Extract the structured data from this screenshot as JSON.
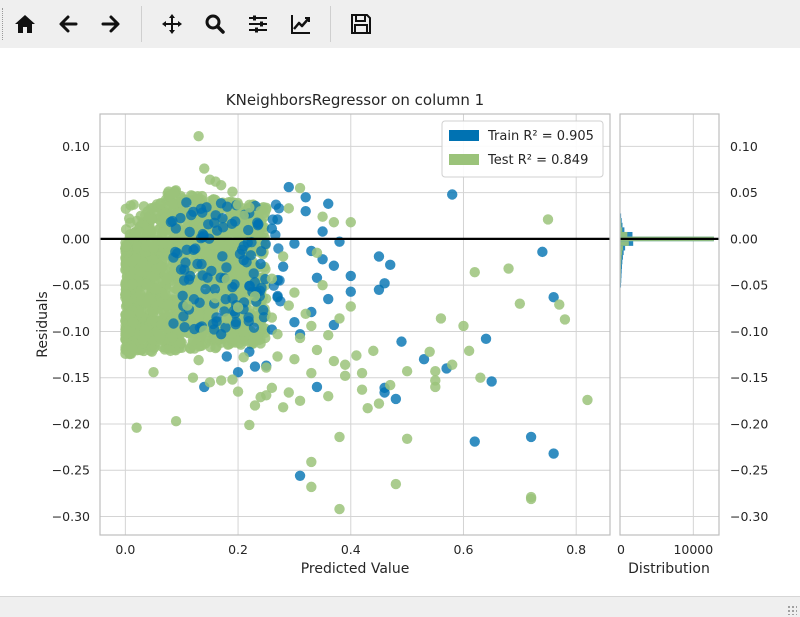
{
  "toolbar": {
    "buttons": [
      {
        "icon": "home-icon"
      },
      {
        "icon": "back-arrow-icon"
      },
      {
        "icon": "forward-arrow-icon"
      },
      {
        "icon": "pan-icon"
      },
      {
        "icon": "zoom-icon"
      },
      {
        "icon": "configure-subplots-icon"
      },
      {
        "icon": "edit-axes-icon"
      },
      {
        "icon": "save-icon"
      }
    ]
  },
  "chart_data": {
    "type": "scatter",
    "title": "KNeighborsRegressor on column 1",
    "xlabel": "Predicted Value",
    "ylabel": "Residuals",
    "xlim": [
      -0.045,
      0.86
    ],
    "ylim": [
      -0.32,
      0.135
    ],
    "xticks": [
      0.0,
      0.2,
      0.4,
      0.6,
      0.8
    ],
    "xtick_labels": [
      "0.0",
      "0.2",
      "0.4",
      "0.6",
      "0.8"
    ],
    "yticks": [
      0.1,
      0.05,
      0.0,
      -0.05,
      -0.1,
      -0.15,
      -0.2,
      -0.25,
      -0.3
    ],
    "ytick_labels": [
      "0.10",
      "0.05",
      "0.00",
      "−0.05",
      "−0.10",
      "−0.15",
      "−0.20",
      "−0.25",
      "−0.30"
    ],
    "grid": true,
    "legend_position": "top-right",
    "reference_line_y": 0.0,
    "series": [
      {
        "name": "Train",
        "legend_text": "Train R² = 0.905",
        "color": "#0072b2",
        "points": [
          [
            0.58,
            0.048
          ],
          [
            0.74,
            -0.014
          ],
          [
            0.76,
            -0.063
          ],
          [
            0.72,
            -0.214
          ],
          [
            0.76,
            -0.232
          ],
          [
            0.62,
            -0.219
          ],
          [
            0.65,
            -0.154
          ],
          [
            0.64,
            -0.108
          ],
          [
            0.53,
            -0.13
          ],
          [
            0.46,
            -0.161
          ],
          [
            0.48,
            -0.173
          ],
          [
            0.46,
            -0.166
          ],
          [
            0.57,
            -0.14
          ],
          [
            0.34,
            -0.16
          ],
          [
            0.31,
            -0.256
          ],
          [
            0.4,
            -0.04
          ],
          [
            0.4,
            -0.057
          ],
          [
            0.45,
            -0.019
          ],
          [
            0.46,
            -0.048
          ],
          [
            0.47,
            -0.028
          ],
          [
            0.49,
            -0.111
          ],
          [
            0.45,
            -0.055
          ],
          [
            0.36,
            0.038
          ],
          [
            0.32,
            0.045
          ],
          [
            0.29,
            0.056
          ],
          [
            0.33,
            -0.013
          ],
          [
            0.38,
            -0.003
          ],
          [
            0.37,
            -0.029
          ],
          [
            0.37,
            -0.093
          ],
          [
            0.36,
            -0.065
          ],
          [
            0.34,
            -0.042
          ],
          [
            0.33,
            -0.079
          ],
          [
            0.31,
            -0.103
          ],
          [
            0.3,
            -0.09
          ],
          [
            0.28,
            -0.03
          ],
          [
            0.27,
            -0.063
          ],
          [
            0.26,
            -0.098
          ],
          [
            0.25,
            -0.137
          ],
          [
            0.23,
            -0.138
          ],
          [
            0.22,
            -0.122
          ],
          [
            0.2,
            -0.144
          ],
          [
            0.18,
            -0.127
          ],
          [
            0.17,
            -0.103
          ],
          [
            0.14,
            -0.16
          ],
          [
            0.24,
            -0.027
          ],
          [
            0.22,
            -0.051
          ],
          [
            0.21,
            -0.023
          ],
          [
            0.19,
            -0.052
          ],
          [
            0.27,
            0.021
          ],
          [
            0.3,
            -0.005
          ],
          [
            0.32,
            0.03
          ],
          [
            0.35,
            0.008
          ],
          [
            0.35,
            -0.022
          ],
          [
            0.26,
            0.011
          ]
        ]
      },
      {
        "name": "Test",
        "legend_text": "Test R² = 0.849",
        "color": "#9bc37a",
        "points": [
          [
            0.13,
            0.111
          ],
          [
            0.14,
            0.076
          ],
          [
            0.16,
            0.062
          ],
          [
            0.15,
            0.064
          ],
          [
            0.17,
            0.058
          ],
          [
            0.19,
            0.051
          ],
          [
            0.2,
            0.037
          ],
          [
            0.22,
            0.034
          ],
          [
            0.25,
            0.032
          ],
          [
            0.31,
            0.055
          ],
          [
            0.4,
            0.018
          ],
          [
            0.75,
            0.021
          ],
          [
            0.78,
            -0.087
          ],
          [
            0.77,
            -0.071
          ],
          [
            0.68,
            -0.032
          ],
          [
            0.7,
            -0.07
          ],
          [
            0.62,
            -0.036
          ],
          [
            0.56,
            -0.086
          ],
          [
            0.63,
            -0.15
          ],
          [
            0.82,
            -0.174
          ],
          [
            0.72,
            -0.279
          ],
          [
            0.72,
            -0.281
          ],
          [
            0.5,
            -0.216
          ],
          [
            0.48,
            -0.265
          ],
          [
            0.38,
            -0.292
          ],
          [
            0.33,
            -0.268
          ],
          [
            0.33,
            -0.241
          ],
          [
            0.38,
            -0.214
          ],
          [
            0.39,
            -0.136
          ],
          [
            0.42,
            -0.145
          ],
          [
            0.42,
            -0.163
          ],
          [
            0.43,
            -0.183
          ],
          [
            0.45,
            -0.178
          ],
          [
            0.47,
            -0.158
          ],
          [
            0.5,
            -0.143
          ],
          [
            0.54,
            -0.122
          ],
          [
            0.55,
            -0.143
          ],
          [
            0.55,
            -0.153
          ],
          [
            0.58,
            -0.136
          ],
          [
            0.6,
            -0.094
          ],
          [
            0.61,
            -0.121
          ],
          [
            0.55,
            -0.16
          ],
          [
            0.44,
            -0.121
          ],
          [
            0.41,
            -0.126
          ],
          [
            0.36,
            -0.104
          ],
          [
            0.37,
            -0.132
          ],
          [
            0.34,
            -0.12
          ],
          [
            0.33,
            -0.145
          ],
          [
            0.31,
            -0.175
          ],
          [
            0.28,
            -0.182
          ],
          [
            0.26,
            -0.161
          ],
          [
            0.25,
            -0.169
          ],
          [
            0.24,
            -0.171
          ],
          [
            0.23,
            -0.18
          ],
          [
            0.22,
            -0.201
          ],
          [
            0.2,
            -0.165
          ],
          [
            0.19,
            -0.152
          ],
          [
            0.17,
            -0.153
          ],
          [
            0.15,
            -0.155
          ],
          [
            0.12,
            -0.15
          ],
          [
            0.09,
            -0.197
          ],
          [
            0.02,
            -0.204
          ],
          [
            0.05,
            -0.144
          ],
          [
            0.08,
            -0.121
          ],
          [
            0.1,
            -0.112
          ],
          [
            0.29,
            -0.166
          ],
          [
            0.27,
            -0.103
          ],
          [
            0.29,
            -0.072
          ],
          [
            0.3,
            -0.058
          ],
          [
            0.32,
            -0.081
          ],
          [
            0.26,
            -0.043
          ],
          [
            0.28,
            -0.019
          ],
          [
            0.34,
            -0.015
          ],
          [
            0.35,
            0.024
          ],
          [
            0.37,
            0.018
          ],
          [
            0.29,
            0.033
          ],
          [
            0.24,
            0.03
          ],
          [
            0.21,
            0.025
          ],
          [
            0.24,
            -0.113
          ],
          [
            0.21,
            -0.1
          ],
          [
            0.18,
            -0.086
          ],
          [
            0.14,
            -0.099
          ],
          [
            0.13,
            -0.083
          ],
          [
            0.11,
            -0.072
          ],
          [
            0.35,
            -0.05
          ],
          [
            0.38,
            -0.086
          ],
          [
            0.31,
            -0.107
          ],
          [
            0.27,
            -0.127
          ],
          [
            0.33,
            -0.094
          ],
          [
            0.4,
            -0.073
          ],
          [
            0.23,
            -0.062
          ],
          [
            0.2,
            -0.074
          ],
          [
            0.16,
            -0.064
          ],
          [
            0.18,
            -0.044
          ],
          [
            0.26,
            -0.085
          ],
          [
            0.3,
            -0.13
          ],
          [
            0.36,
            -0.17
          ],
          [
            0.39,
            -0.148
          ],
          [
            0.25,
            -0.139
          ],
          [
            0.21,
            -0.128
          ],
          [
            0.16,
            -0.118
          ],
          [
            0.13,
            -0.131
          ]
        ]
      }
    ],
    "dense_region": {
      "series": "Test",
      "x_range": [
        0.0,
        0.25
      ],
      "description_values": {
        "residual_upper_at_x0": 0.0,
        "residual_upper_at_x0_08": 0.055,
        "residual_lower": -0.125
      }
    },
    "distribution_panel": {
      "xlabel": "Distribution",
      "xticks": [
        0,
        10000
      ],
      "xtick_labels": [
        "0",
        "10000"
      ],
      "xlim": [
        0,
        13500
      ],
      "bins": [
        {
          "y": 0.025,
          "train": 150,
          "test": 70
        },
        {
          "y": 0.02,
          "train": 230,
          "test": 120
        },
        {
          "y": 0.015,
          "train": 340,
          "test": 180
        },
        {
          "y": 0.01,
          "train": 600,
          "test": 300
        },
        {
          "y": 0.005,
          "train": 1700,
          "test": 1000
        },
        {
          "y": 0.0,
          "train": 12800,
          "test": 12800
        },
        {
          "y": -0.005,
          "train": 1800,
          "test": 1200
        },
        {
          "y": -0.01,
          "train": 700,
          "test": 400
        },
        {
          "y": -0.015,
          "train": 500,
          "test": 300
        },
        {
          "y": -0.02,
          "train": 400,
          "test": 220
        },
        {
          "y": -0.025,
          "train": 320,
          "test": 170
        },
        {
          "y": -0.03,
          "train": 270,
          "test": 140
        },
        {
          "y": -0.035,
          "train": 230,
          "test": 120
        },
        {
          "y": -0.04,
          "train": 200,
          "test": 110
        },
        {
          "y": -0.045,
          "train": 170,
          "test": 90
        },
        {
          "y": -0.05,
          "train": 140,
          "test": 70
        }
      ]
    }
  }
}
